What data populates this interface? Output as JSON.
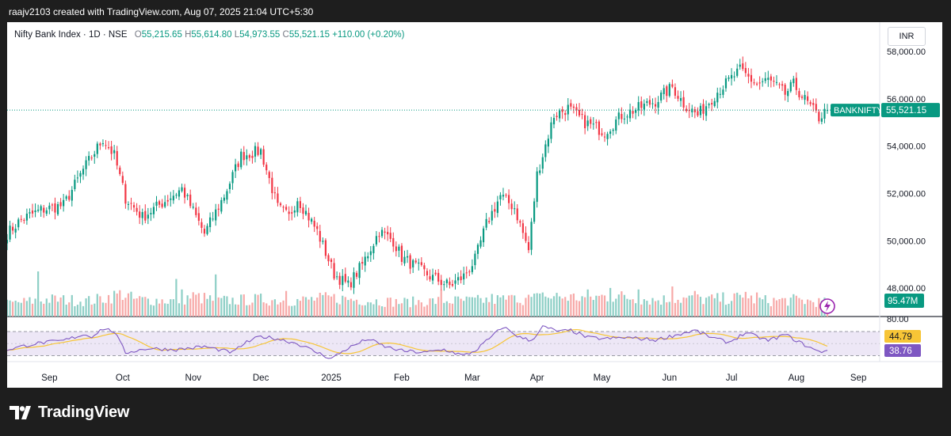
{
  "header": {
    "text": "raajv2103 created with TradingView.com, Aug 07, 2025 21:04 UTC+5:30"
  },
  "footer": {
    "brand": "TradingView"
  },
  "legend": {
    "title": "Nifty Bank Index · 1D · NSE",
    "o_label": "O",
    "o": "55,215.65",
    "h_label": "H",
    "h": "55,614.80",
    "l_label": "L",
    "l": "54,973.55",
    "c_label": "C",
    "c": "55,521.15",
    "change": "+110.00 (+0.20%)"
  },
  "currency": "INR",
  "colors": {
    "up": "#089981",
    "down": "#f23645",
    "up_vol": "#8ecfc6",
    "down_vol": "#f7a9a8",
    "rsi": "#7e57c2",
    "rsi_ma": "#f7c536",
    "rsi_band": "#ede7f6",
    "label_up": "#089981"
  },
  "chart_data": [
    {
      "type": "candlestick",
      "title": "Nifty Bank Index · 1D · NSE",
      "symbol_label": "BANKNIFTY",
      "last_price": 55521.15,
      "last_price_label": "55,521.15",
      "ylim": [
        46800,
        58900
      ],
      "y_ticks": [
        48000,
        50000,
        52000,
        54000,
        56000,
        58000
      ],
      "y_tick_labels": [
        "48,000.00",
        "50,000.00",
        "52,000.00",
        "54,000.00",
        "56,000.00",
        "58,000.00"
      ],
      "x_tick_labels": [
        "Sep",
        "Oct",
        "Nov",
        "Dec",
        "2025",
        "Feb",
        "Mar",
        "Apr",
        "May",
        "Jun",
        "Jul",
        "Aug",
        "Sep"
      ],
      "x_tick_days": [
        15,
        41,
        66,
        90,
        115,
        140,
        165,
        188,
        211,
        235,
        257,
        280,
        302
      ],
      "close_path": {
        "days": [
          0,
          5,
          12,
          20,
          27,
          34,
          38,
          42,
          48,
          55,
          62,
          70,
          77,
          83,
          90,
          96,
          100,
          103,
          110,
          116,
          121,
          126,
          132,
          137,
          140,
          145,
          150,
          157,
          162,
          166,
          170,
          175,
          180,
          185,
          188,
          194,
          199,
          205,
          212,
          218,
          224,
          230,
          236,
          240,
          245,
          252,
          260,
          266,
          270,
          276,
          279,
          284,
          288,
          291
        ],
        "closes": [
          50300,
          50900,
          51300,
          51500,
          53000,
          54300,
          53600,
          51800,
          51000,
          51600,
          52200,
          50300,
          51900,
          53600,
          53800,
          51400,
          51000,
          51800,
          50400,
          48600,
          48100,
          49000,
          50400,
          50000,
          49300,
          48900,
          48500,
          48100,
          48500,
          49200,
          50700,
          51900,
          51400,
          49600,
          52800,
          55300,
          55600,
          55000,
          54600,
          55300,
          55600,
          55900,
          56500,
          55800,
          55300,
          56300,
          57200,
          56600,
          56800,
          56200,
          56600,
          55800,
          55200,
          55521
        ]
      },
      "volume": {
        "last_label": "95.47M",
        "path_days": [
          0,
          15,
          30,
          41,
          45,
          60,
          66,
          75,
          90,
          102,
          115,
          130,
          140,
          155,
          165,
          175,
          185,
          195,
          205,
          215,
          230,
          240,
          250,
          260,
          270,
          280,
          291
        ],
        "path_values": [
          45,
          60,
          55,
          80,
          60,
          55,
          70,
          55,
          60,
          55,
          65,
          55,
          50,
          55,
          55,
          60,
          62,
          70,
          65,
          72,
          58,
          62,
          60,
          65,
          55,
          58,
          48
        ],
        "spikes": [
          [
            11,
            150
          ],
          [
            60,
            125
          ],
          [
            62,
            90
          ],
          [
            74,
            140
          ],
          [
            99,
            85
          ],
          [
            154,
            88
          ],
          [
            172,
            75
          ],
          [
            180,
            70
          ],
          [
            190,
            80
          ],
          [
            206,
            90
          ],
          [
            214,
            95
          ],
          [
            224,
            90
          ],
          [
            236,
            100
          ],
          [
            244,
            85
          ],
          [
            262,
            82
          ],
          [
            266,
            80
          ]
        ]
      },
      "rsi": {
        "upper": 70,
        "lower": 30,
        "ylim": [
          20,
          95
        ],
        "scale_label": "80.00",
        "value": 38.76,
        "value_label": "38.76",
        "ma_value": 44.79,
        "ma_label": "44.79",
        "days": [
          0,
          10,
          20,
          27,
          30,
          34,
          38,
          42,
          50,
          60,
          70,
          80,
          84,
          90,
          96,
          103,
          110,
          115,
          120,
          128,
          134,
          140,
          148,
          155,
          162,
          166,
          172,
          176,
          182,
          186,
          190,
          196,
          200,
          206,
          212,
          220,
          230,
          238,
          244,
          250,
          256,
          262,
          270,
          276,
          282,
          288,
          291
        ],
        "values": [
          40,
          50,
          55,
          65,
          62,
          75,
          70,
          35,
          42,
          40,
          45,
          35,
          50,
          62,
          58,
          50,
          35,
          25,
          40,
          58,
          45,
          38,
          35,
          40,
          30,
          38,
          62,
          78,
          60,
          55,
          78,
          70,
          72,
          60,
          58,
          60,
          56,
          65,
          72,
          60,
          52,
          68,
          55,
          65,
          50,
          36,
          39
        ]
      }
    }
  ]
}
